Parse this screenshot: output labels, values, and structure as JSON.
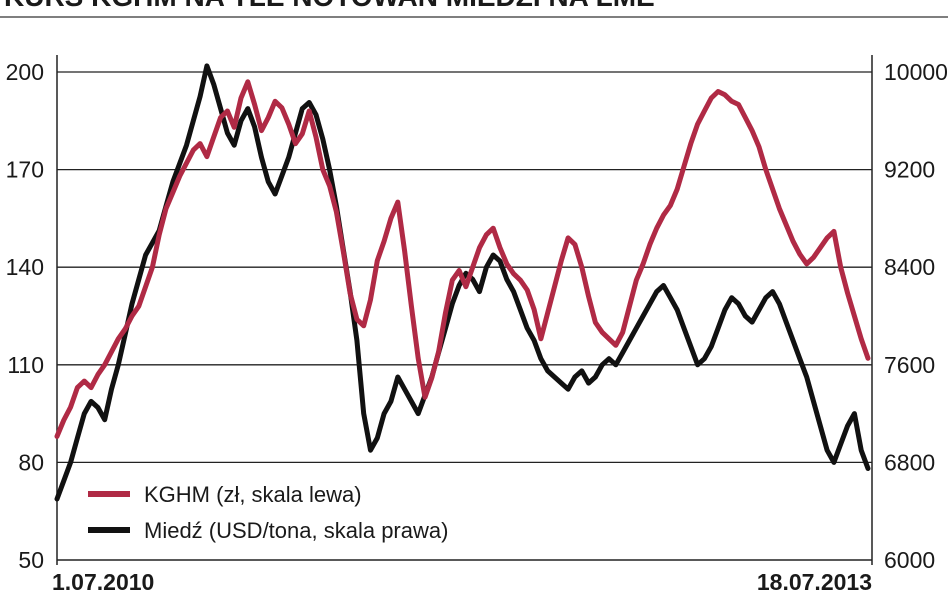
{
  "title": "KURS KGHM NA TLE NOTOWAŃ MIEDZI NA LME",
  "chart_data": {
    "type": "line",
    "x_labels": [
      "1.07.2010",
      "18.07.2013"
    ],
    "yticks_left": [
      50,
      80,
      110,
      140,
      170,
      200
    ],
    "yticks_right": [
      6000,
      6800,
      7600,
      8400,
      9200,
      10000
    ],
    "ylim_left": [
      50,
      200
    ],
    "ylim_right": [
      6000,
      10000
    ],
    "grid": true,
    "legend_position": "bottom-left",
    "series": [
      {
        "name": "KGHM (zł, skala lewa)",
        "axis": "left",
        "color": "#b02a45",
        "values": [
          88,
          93,
          97,
          103,
          105,
          103,
          107,
          110,
          114,
          118,
          121,
          125,
          128,
          134,
          140,
          150,
          158,
          163,
          168,
          172,
          176,
          178,
          174,
          180,
          186,
          188,
          183,
          192,
          197,
          190,
          182,
          186,
          191,
          189,
          184,
          178,
          181,
          188,
          180,
          170,
          165,
          157,
          145,
          132,
          124,
          122,
          130,
          142,
          148,
          155,
          160,
          145,
          128,
          112,
          100,
          106,
          114,
          126,
          136,
          139,
          134,
          140,
          146,
          150,
          152,
          146,
          141,
          138,
          136,
          133,
          127,
          118,
          126,
          134,
          142,
          149,
          147,
          140,
          131,
          123,
          120,
          118,
          116,
          120,
          128,
          136,
          141,
          147,
          152,
          156,
          159,
          164,
          171,
          178,
          184,
          188,
          192,
          194,
          193,
          191,
          190,
          186,
          182,
          177,
          170,
          164,
          158,
          153,
          148,
          144,
          141,
          143,
          146,
          149,
          151,
          140,
          132,
          125,
          118,
          112
        ]
      },
      {
        "name": "Miedź (USD/tona, skala prawa)",
        "axis": "right",
        "color": "#111111",
        "values": [
          6500,
          6650,
          6800,
          7000,
          7200,
          7300,
          7250,
          7150,
          7400,
          7600,
          7850,
          8100,
          8300,
          8500,
          8600,
          8700,
          8900,
          9100,
          9250,
          9400,
          9600,
          9800,
          10050,
          9900,
          9700,
          9500,
          9400,
          9600,
          9700,
          9550,
          9300,
          9100,
          9000,
          9150,
          9300,
          9500,
          9700,
          9750,
          9650,
          9450,
          9200,
          8900,
          8550,
          8200,
          7800,
          7200,
          6900,
          7000,
          7200,
          7300,
          7500,
          7400,
          7300,
          7200,
          7350,
          7500,
          7700,
          7900,
          8100,
          8250,
          8350,
          8300,
          8200,
          8400,
          8500,
          8450,
          8300,
          8200,
          8050,
          7900,
          7800,
          7650,
          7550,
          7500,
          7450,
          7400,
          7500,
          7550,
          7450,
          7500,
          7600,
          7650,
          7600,
          7700,
          7800,
          7900,
          8000,
          8100,
          8200,
          8250,
          8150,
          8050,
          7900,
          7750,
          7600,
          7650,
          7750,
          7900,
          8050,
          8150,
          8100,
          8000,
          7950,
          8050,
          8150,
          8200,
          8100,
          7950,
          7800,
          7650,
          7500,
          7300,
          7100,
          6900,
          6800,
          6950,
          7100,
          7200,
          6900,
          6750
        ]
      }
    ]
  }
}
